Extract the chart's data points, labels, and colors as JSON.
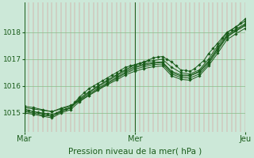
{
  "background_color": "#cce8d8",
  "plot_bg_color": "#cce8d8",
  "line_color": "#1a5c1a",
  "grid_color_v": "#d88888",
  "grid_color_h": "#88bb88",
  "xlabel": "Pression niveau de la mer( hPa )",
  "xlabel_fontsize": 7.5,
  "ytick_fontsize": 6.5,
  "xtick_fontsize": 7,
  "yticks": [
    1015,
    1016,
    1017,
    1018
  ],
  "ylim": [
    1014.3,
    1019.1
  ],
  "xlim": [
    0,
    48
  ],
  "xtick_positions": [
    0,
    24,
    48
  ],
  "xtick_labels": [
    "Mar",
    "Mer",
    "Jeu"
  ],
  "marker": "D",
  "marker_size": 1.8,
  "linewidth": 0.7,
  "num_vgrid": 48,
  "series": [
    {
      "x": [
        0,
        1,
        2,
        3,
        4,
        5,
        6,
        7,
        8,
        9,
        10,
        11,
        12,
        13,
        14,
        15,
        16,
        17,
        18,
        19,
        20,
        21,
        22,
        23,
        24,
        25,
        26,
        27,
        28,
        29,
        30,
        31,
        32,
        33,
        34,
        35,
        36,
        37,
        38,
        39,
        40,
        41,
        42,
        43,
        44,
        45,
        46,
        47,
        48
      ],
      "y": [
        1015.1,
        1015.08,
        1015.05,
        1015.02,
        1015.0,
        1014.98,
        1014.95,
        1015.0,
        1015.1,
        1015.15,
        1015.2,
        1015.4,
        1015.6,
        1015.75,
        1015.9,
        1016.0,
        1016.1,
        1016.2,
        1016.3,
        1016.4,
        1016.5,
        1016.6,
        1016.7,
        1016.75,
        1016.8,
        1016.85,
        1016.9,
        1016.97,
        1017.05,
        1017.08,
        1017.1,
        1017.0,
        1016.9,
        1016.75,
        1016.6,
        1016.58,
        1016.55,
        1016.65,
        1016.8,
        1016.95,
        1017.2,
        1017.4,
        1017.6,
        1017.8,
        1018.0,
        1018.1,
        1018.2,
        1018.35,
        1018.5
      ]
    },
    {
      "x": [
        0,
        2,
        4,
        6,
        8,
        10,
        12,
        14,
        16,
        18,
        20,
        22,
        24,
        26,
        28,
        30,
        32,
        34,
        36,
        38,
        40,
        42,
        44,
        46,
        48
      ],
      "y": [
        1015.05,
        1015.0,
        1014.92,
        1014.88,
        1015.05,
        1015.2,
        1015.55,
        1015.78,
        1016.0,
        1016.22,
        1016.42,
        1016.62,
        1016.78,
        1016.88,
        1016.95,
        1017.0,
        1016.7,
        1016.5,
        1016.45,
        1016.6,
        1017.0,
        1017.5,
        1017.98,
        1018.2,
        1018.42
      ]
    },
    {
      "x": [
        0,
        2,
        4,
        6,
        8,
        10,
        12,
        14,
        16,
        18,
        20,
        22,
        24,
        26,
        28,
        30,
        32,
        34,
        36,
        38,
        40,
        42,
        44,
        46,
        48
      ],
      "y": [
        1015.2,
        1015.15,
        1015.1,
        1015.05,
        1015.15,
        1015.25,
        1015.5,
        1015.75,
        1015.98,
        1016.18,
        1016.38,
        1016.58,
        1016.72,
        1016.82,
        1016.88,
        1016.9,
        1016.55,
        1016.42,
        1016.4,
        1016.55,
        1016.92,
        1017.42,
        1017.9,
        1018.12,
        1018.32
      ]
    },
    {
      "x": [
        0,
        2,
        4,
        6,
        8,
        10,
        12,
        14,
        16,
        18,
        20,
        22,
        24,
        26,
        28,
        30,
        32,
        34,
        36,
        38,
        40,
        42,
        44,
        46,
        48
      ],
      "y": [
        1015.15,
        1015.05,
        1014.97,
        1014.88,
        1015.05,
        1015.18,
        1015.48,
        1015.7,
        1015.92,
        1016.12,
        1016.32,
        1016.52,
        1016.68,
        1016.78,
        1016.85,
        1016.88,
        1016.5,
        1016.38,
        1016.38,
        1016.52,
        1016.88,
        1017.38,
        1017.85,
        1018.08,
        1018.28
      ]
    },
    {
      "x": [
        0,
        2,
        4,
        6,
        8,
        10,
        12,
        14,
        16,
        18,
        20,
        22,
        24,
        26,
        28,
        30,
        32,
        34,
        36,
        38,
        40,
        42,
        44,
        46,
        48
      ],
      "y": [
        1015.0,
        1014.95,
        1014.88,
        1014.82,
        1015.0,
        1015.12,
        1015.42,
        1015.65,
        1015.88,
        1016.08,
        1016.28,
        1016.48,
        1016.62,
        1016.72,
        1016.8,
        1016.82,
        1016.45,
        1016.32,
        1016.3,
        1016.45,
        1016.82,
        1017.32,
        1017.82,
        1018.05,
        1018.25
      ]
    },
    {
      "x": [
        0,
        2,
        4,
        6,
        8,
        10,
        12,
        14,
        16,
        18,
        20,
        22,
        24,
        26,
        28,
        30,
        32,
        34,
        36,
        38,
        40,
        42,
        44,
        46,
        48
      ],
      "y": [
        1015.25,
        1015.2,
        1015.12,
        1015.05,
        1015.18,
        1015.28,
        1015.45,
        1015.65,
        1015.85,
        1016.05,
        1016.22,
        1016.42,
        1016.55,
        1016.65,
        1016.72,
        1016.75,
        1016.38,
        1016.25,
        1016.22,
        1016.38,
        1016.75,
        1017.22,
        1017.72,
        1017.95,
        1018.15
      ]
    }
  ]
}
